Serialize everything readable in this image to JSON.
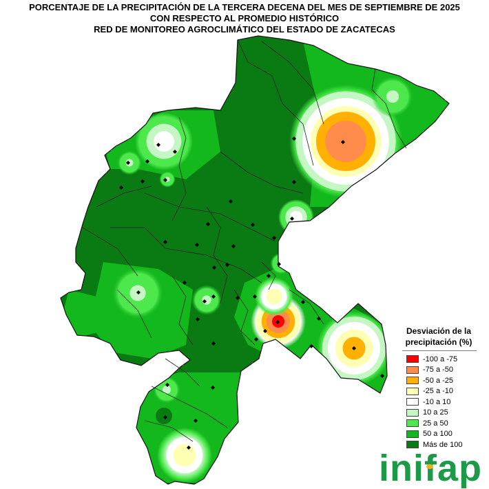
{
  "title": {
    "line1": "PORCENTAJE DE LA PRECIPITACIÓN DE LA TERCERA DECENA DEL MES DE SEPTIEMBRE DE 2025",
    "line2": "CON RESPECTO AL PROMEDIO HISTÓRICO",
    "line3": "RED DE MONITOREO AGROCLIMÁTICO DEL ESTADO DE ZACATECAS"
  },
  "legend": {
    "title_line1": "Desviación de la",
    "title_line2": "precipitación (%)",
    "items": [
      {
        "label": "-100 a -75",
        "color": "#ff0000"
      },
      {
        "label": "-75 a -50",
        "color": "#ff8c4a"
      },
      {
        "label": "-50 a -25",
        "color": "#ffb000"
      },
      {
        "label": "-25 a -10",
        "color": "#ffffb4"
      },
      {
        "label": "-10 a 10",
        "color": "#ffffff"
      },
      {
        "label": "10 a 25",
        "color": "#c4f7c4"
      },
      {
        "label": "25 a 50",
        "color": "#4ce84c"
      },
      {
        "label": "50 a 100",
        "color": "#13b81c"
      },
      {
        "label": "Más de 100",
        "color": "#0a7a12"
      }
    ]
  },
  "map": {
    "base_color": "#0a7a12",
    "boundary_color": "#222222",
    "station_marker": "diamond-icon"
  },
  "logo": {
    "text": "inifap",
    "color": "#1c9a48",
    "accent": "#f0b020"
  }
}
